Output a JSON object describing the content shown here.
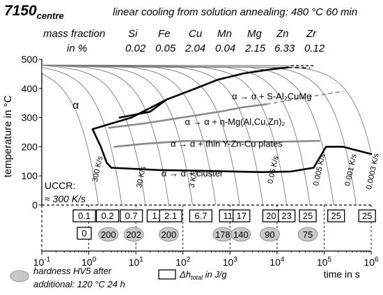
{
  "header": {
    "alloy": "7150",
    "alloy_sub": "centre",
    "process": "linear cooling from solution annealing: 480 °C 60 min",
    "mass_fraction_label": "mass fraction",
    "unit_label": "in %",
    "elements": [
      {
        "symbol": "Si",
        "value": "0.02"
      },
      {
        "symbol": "Fe",
        "value": "0.05"
      },
      {
        "symbol": "Cu",
        "value": "2.04"
      },
      {
        "symbol": "Mn",
        "value": "0.04"
      },
      {
        "symbol": "Mg",
        "value": "2.15"
      },
      {
        "symbol": "Zn",
        "value": "6.33"
      },
      {
        "symbol": "Zr",
        "value": "0.12"
      }
    ]
  },
  "chart_data": {
    "type": "line",
    "xscale": "log",
    "xlim": [
      0.1,
      1000000
    ],
    "ylim": [
      0,
      500
    ],
    "xlabel": "time in s",
    "ylabel": "temperature in °C",
    "x_ticks": [
      {
        "v": 0.1,
        "base": "10",
        "exp": "-1"
      },
      {
        "v": 1,
        "base": "10",
        "exp": "0"
      },
      {
        "v": 10,
        "base": "10",
        "exp": "1"
      },
      {
        "v": 100,
        "base": "10",
        "exp": "2"
      },
      {
        "v": 1000,
        "base": "10",
        "exp": "3"
      },
      {
        "v": 10000,
        "base": "10",
        "exp": "4"
      },
      {
        "v": 100000,
        "base": "10",
        "exp": "5"
      },
      {
        "v": 1000000,
        "base": "10",
        "exp": "6"
      }
    ],
    "y_ticks": [
      0,
      100,
      200,
      300,
      400,
      500
    ],
    "regions": [
      {
        "text": "α",
        "x": 0.45,
        "y": 330
      },
      {
        "text": "α → α + S-Al₂CuMg",
        "x": 1100,
        "y": 362
      },
      {
        "text": "α → α + η-Mg(Al,Cu,Zn)₂",
        "x": 110,
        "y": 275
      },
      {
        "text": "α → α + thin Y-Zn-Cu plates",
        "x": 55,
        "y": 200
      },
      {
        "text": "α → α + cluster",
        "x": 35,
        "y": 98
      }
    ],
    "uccr_label": "UCCR:",
    "uccr_value": "≈ 300 K/s",
    "rate_labels": [
      {
        "text": "300 K/s",
        "x": 1.5,
        "y": 78
      },
      {
        "text": "30 K/s",
        "x": 13,
        "y": 58
      },
      {
        "text": "3 K/s",
        "x": 170,
        "y": 58
      },
      {
        "text": "0.05 K/s",
        "x": 8000,
        "y": 72
      },
      {
        "text": "0.005 K/s",
        "x": 75000,
        "y": 65
      },
      {
        "text": "0.001 K/s",
        "x": 350000,
        "y": 64
      },
      {
        "text": "0.0003 K/s",
        "x": 1000000,
        "y": 52
      }
    ],
    "cooling_curves": [
      {
        "t480": 1.6
      },
      {
        "t480": 5
      },
      {
        "t480": 16
      },
      {
        "t480": 50
      },
      {
        "t480": 160
      },
      {
        "t480": 500
      },
      {
        "t480": 1600
      },
      {
        "t480": 5000
      },
      {
        "t480": 16000
      },
      {
        "t480": 50000
      },
      {
        "t480": 160000
      },
      {
        "t480": 480000
      },
      {
        "t480": 1600000
      }
    ],
    "series": [
      {
        "name": "S-Al2CuMg",
        "style": "black-thick",
        "points": [
          [
            4.5,
            300
          ],
          [
            20,
            320
          ],
          [
            45,
            362
          ],
          [
            200,
            402
          ],
          [
            550,
            430
          ],
          [
            2000,
            452
          ],
          [
            7000,
            465
          ],
          [
            17000,
            472
          ]
        ],
        "dashed_ext": [
          [
            17000,
            472
          ],
          [
            50000,
            470
          ]
        ]
      },
      {
        "name": "η-Mg(Al,Cu,Zn)2",
        "style": "black-thick",
        "points": [
          [
            1.2,
            260
          ],
          [
            2.8,
            278
          ],
          [
            8,
            300
          ],
          [
            45,
            362
          ]
        ]
      },
      {
        "name": "η-Mg(Al,Cu,Zn)2 end",
        "style": "gray-thick",
        "points": [
          [
            2.7,
            265
          ],
          [
            15,
            280
          ],
          [
            150,
            305
          ],
          [
            700,
            322
          ],
          [
            1800,
            335
          ],
          [
            6000,
            346
          ]
        ],
        "dashed_ext": [
          [
            6000,
            346
          ],
          [
            50000,
            372
          ],
          [
            250000,
            390
          ]
        ]
      },
      {
        "name": "thin Y-Zn-Cu plates",
        "style": "gray-thick",
        "points": [
          [
            3.5,
            200
          ],
          [
            15,
            210
          ],
          [
            120,
            220
          ],
          [
            1200,
            217
          ],
          [
            10000,
            217
          ],
          [
            80000,
            220
          ]
        ]
      },
      {
        "name": "left boundary",
        "style": "black-thick",
        "points": [
          [
            1.2,
            260
          ],
          [
            1.8,
            200
          ],
          [
            2.4,
            145
          ],
          [
            3,
            128
          ]
        ]
      },
      {
        "name": "cluster",
        "style": "black-thick",
        "points": [
          [
            3,
            128
          ],
          [
            30,
            120
          ],
          [
            300,
            117
          ],
          [
            5000,
            113
          ],
          [
            20000,
            115
          ],
          [
            60000,
            128
          ],
          [
            110000,
            200
          ],
          [
            250000,
            200
          ],
          [
            1000000,
            175
          ]
        ]
      }
    ],
    "enthalpy_top": [
      {
        "x": 0.8,
        "text": "0.1"
      },
      {
        "x": 2.5,
        "text": "0.2"
      },
      {
        "x": 8,
        "text": "0.7"
      },
      {
        "x": 30,
        "text": "1.2"
      },
      {
        "x": 55,
        "text": "2.1"
      },
      {
        "x": 240,
        "text": "6.7"
      },
      {
        "x": 900,
        "text": "11"
      },
      {
        "x": 1750,
        "text": "17"
      },
      {
        "x": 7500,
        "text": "20"
      },
      {
        "x": 16000,
        "text": "23"
      },
      {
        "x": 45000,
        "text": "25"
      },
      {
        "x": 180000,
        "text": "25"
      },
      {
        "x": 820000,
        "text": "25"
      }
    ],
    "enthalpy_bottom": [
      {
        "x": 0.8,
        "text": "0"
      }
    ],
    "hardness": [
      {
        "x": 2.6,
        "text": "200"
      },
      {
        "x": 9,
        "text": "202"
      },
      {
        "x": 50,
        "text": "200"
      },
      {
        "x": 700,
        "text": "178"
      },
      {
        "x": 1700,
        "text": "140"
      },
      {
        "x": 7000,
        "text": "90"
      },
      {
        "x": 45000,
        "text": "75"
      }
    ],
    "legend": {
      "hardness_line1": "hardness HV5 after",
      "hardness_line2": "additional: 120 °C 24 h",
      "enthalpy_label": "Δh",
      "enthalpy_sub": "total",
      "enthalpy_unit": " in J/g"
    },
    "colors": {
      "curve": "#7a7a7a",
      "gray_series": "#8a8a8a",
      "ellipse_fill": "#c8c8c8",
      "ellipse_stroke": "#7f7f7f"
    }
  }
}
